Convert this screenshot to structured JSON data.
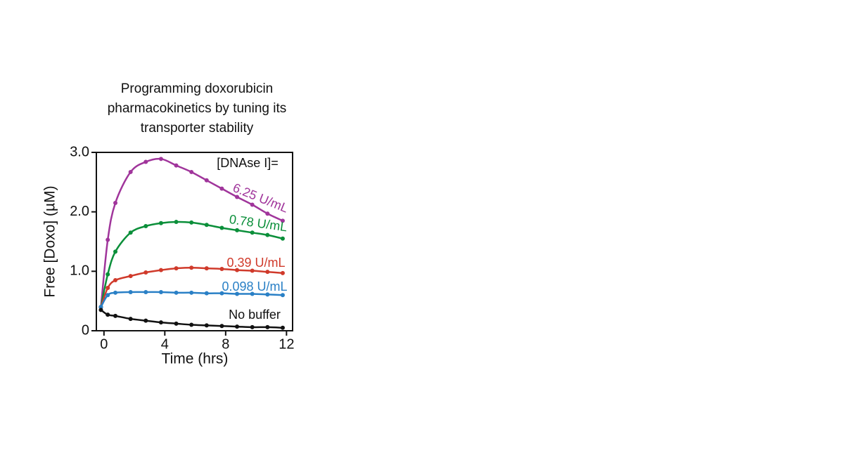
{
  "chart_data": {
    "type": "line",
    "title": [
      "Programming doxorubicin",
      "pharmacokinetics by tuning its",
      "transporter stability"
    ],
    "annotation": "[DNAse I]=",
    "xlabel": "Time (hrs)",
    "ylabel": "Free [Doxo] (µM)",
    "x": [
      -0.2,
      0.25,
      0.75,
      1.75,
      2.75,
      3.75,
      4.75,
      5.75,
      6.75,
      7.75,
      8.75,
      9.75,
      10.75,
      11.75
    ],
    "xlim": [
      -0.5,
      12.4
    ],
    "xticks": [
      0,
      4,
      8,
      12
    ],
    "ylim": [
      0,
      3.0
    ],
    "yticks": [
      0,
      {
        "value": 1,
        "label": "1.0"
      },
      {
        "value": 2,
        "label": "2.0"
      },
      {
        "value": 3,
        "label": "3.0"
      }
    ],
    "series": [
      {
        "name": "6.25 U/mL",
        "color": "#a0359b",
        "values": [
          0.4,
          1.53,
          2.15,
          2.67,
          2.84,
          2.89,
          2.78,
          2.67,
          2.53,
          2.39,
          2.25,
          2.12,
          1.97,
          1.85
        ]
      },
      {
        "name": "0.78 U/mL",
        "color": "#0b8f3a",
        "values": [
          0.4,
          0.95,
          1.33,
          1.65,
          1.76,
          1.81,
          1.83,
          1.82,
          1.78,
          1.73,
          1.69,
          1.65,
          1.61,
          1.55
        ]
      },
      {
        "name": "0.39 U/mL",
        "color": "#d03a2b",
        "values": [
          0.4,
          0.72,
          0.85,
          0.92,
          0.98,
          1.02,
          1.05,
          1.06,
          1.05,
          1.04,
          1.02,
          1.01,
          0.99,
          0.97
        ]
      },
      {
        "name": "0.098 U/mL",
        "color": "#2a80c6",
        "values": [
          0.4,
          0.6,
          0.64,
          0.65,
          0.65,
          0.65,
          0.64,
          0.64,
          0.63,
          0.63,
          0.62,
          0.62,
          0.61,
          0.6
        ]
      },
      {
        "name": "No buffer",
        "color": "#111111",
        "values": [
          0.35,
          0.27,
          0.25,
          0.2,
          0.17,
          0.14,
          0.12,
          0.1,
          0.09,
          0.08,
          0.07,
          0.06,
          0.06,
          0.05
        ]
      }
    ]
  }
}
